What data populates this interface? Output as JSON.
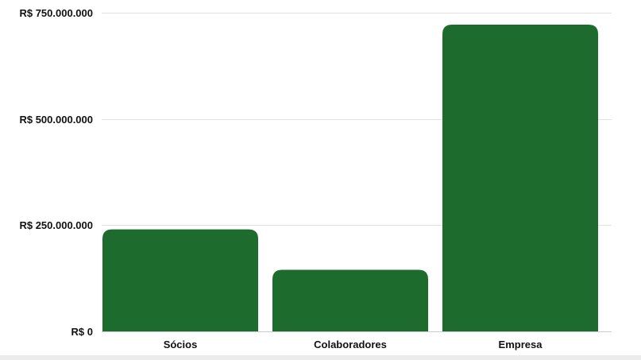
{
  "chart_data": {
    "type": "bar",
    "title": "",
    "xlabel": "",
    "ylabel": "",
    "categories": [
      "Sócios",
      "Colaboradores",
      "Empresa"
    ],
    "values": [
      240000000,
      145000000,
      722000000
    ],
    "ylim": [
      0,
      750000000
    ],
    "yticks": [
      0,
      250000000,
      500000000,
      750000000
    ],
    "ytick_labels": [
      "R$ 0",
      "R$ 250.000.000",
      "R$ 500.000.000",
      "R$ 750.000.000"
    ],
    "grid": true,
    "legend": "none",
    "bar_color": "#1e6b2e"
  }
}
